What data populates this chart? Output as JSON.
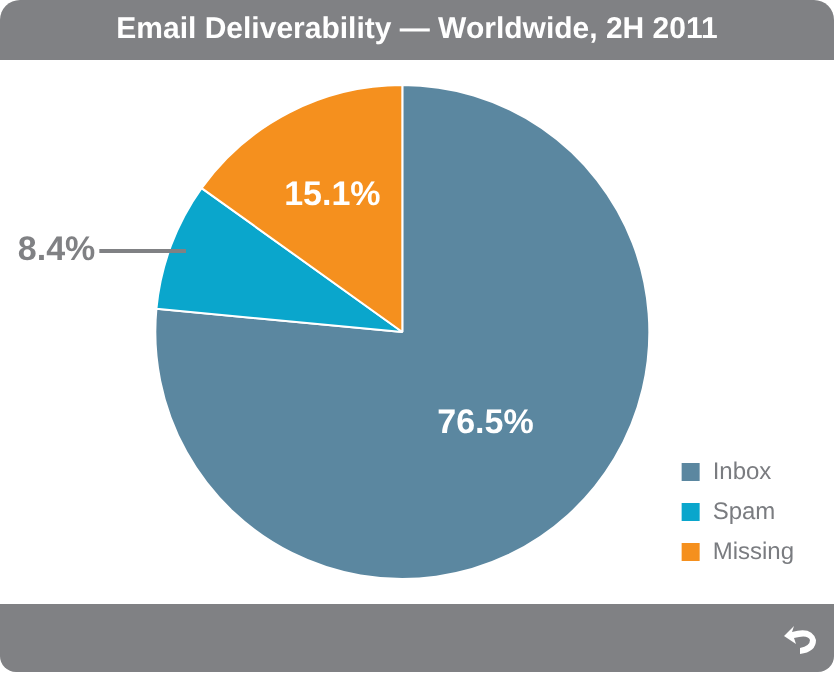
{
  "chart_data": {
    "type": "pie",
    "title": "Email Deliverability — Worldwide, 2H 2011",
    "categories": [
      "Inbox",
      "Spam",
      "Missing"
    ],
    "values": [
      76.5,
      8.4,
      15.1
    ],
    "colors": [
      "#5b87a0",
      "#0aa6cc",
      "#f5901e"
    ],
    "value_labels": [
      "76.5%",
      "8.4%",
      "15.1%"
    ],
    "legend": "bottom right"
  }
}
